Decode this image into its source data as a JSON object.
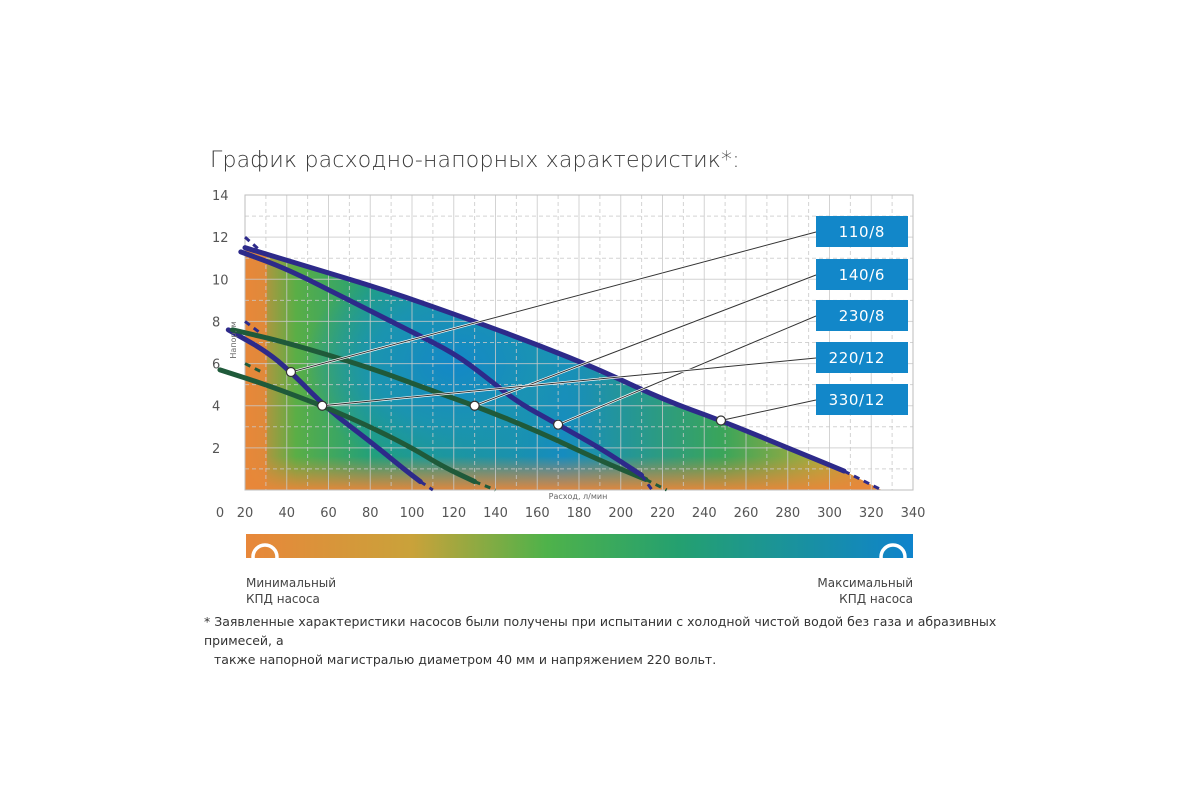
{
  "title": "График расходно-напорных характеристик*:",
  "chart_data": {
    "type": "line",
    "title": "График расходно-напорных характеристик*:",
    "xlabel": "Расход, л/мин",
    "ylabel": "Напор, м",
    "xlim": [
      0,
      340
    ],
    "ylim": [
      0,
      14
    ],
    "xticks": [
      "0",
      "20",
      "40",
      "60",
      "80",
      "100",
      "120",
      "140",
      "160",
      "180",
      "200",
      "220",
      "240",
      "260",
      "280",
      "300",
      "320",
      "340"
    ],
    "yticks": [
      "2",
      "4",
      "6",
      "8",
      "10",
      "12",
      "14"
    ],
    "grid": true,
    "series": [
      {
        "name": "110/8",
        "color": "#2d2a8a",
        "marker": [
          42,
          5.6
        ],
        "x": [
          12,
          30,
          42,
          60,
          80,
          96,
          104
        ],
        "y": [
          7.6,
          6.6,
          5.6,
          3.8,
          2.3,
          1.0,
          0.4
        ],
        "x_dashed": [
          104,
          110
        ],
        "y_dashed": [
          0.4,
          0
        ]
      },
      {
        "name": "140/6",
        "color": "#1f5a3a",
        "marker": [
          130,
          4.0
        ],
        "x": [
          14,
          40,
          80,
          110,
          130,
          160,
          190,
          212
        ],
        "y": [
          7.6,
          7.0,
          5.8,
          4.7,
          4.0,
          2.8,
          1.4,
          0.5
        ],
        "x_dashed": [
          212,
          222
        ],
        "y_dashed": [
          0.5,
          0
        ]
      },
      {
        "name": "230/8",
        "color": "#2d2a8a",
        "marker": [
          170,
          3.1
        ],
        "x": [
          18,
          40,
          70,
          100,
          120,
          135,
          150,
          170,
          190,
          210
        ],
        "y": [
          11.3,
          10.5,
          9.0,
          7.5,
          6.5,
          5.4,
          4.2,
          3.1,
          2.0,
          0.7
        ],
        "x_dashed": [
          210,
          215
        ],
        "y_dashed": [
          0.7,
          0
        ]
      },
      {
        "name": "220/12",
        "color": "#1f5a3a",
        "marker": [
          57,
          4.0
        ],
        "x": [
          8,
          30,
          57,
          80,
          100,
          115,
          130
        ],
        "y": [
          5.7,
          5.0,
          4.0,
          3.0,
          2.0,
          1.1,
          0.4
        ],
        "x_dashed": [
          130,
          140
        ],
        "y_dashed": [
          0.4,
          0
        ]
      },
      {
        "name": "330/12",
        "color": "#2d2a8a",
        "marker": [
          248,
          3.3
        ],
        "x": [
          20,
          50,
          90,
          130,
          160,
          190,
          220,
          248,
          280,
          307
        ],
        "y": [
          11.5,
          10.6,
          9.4,
          8.0,
          6.9,
          5.7,
          4.3,
          3.3,
          2.0,
          0.9
        ],
        "x_dashed": [
          307,
          325
        ],
        "y_dashed": [
          0.9,
          0
        ]
      }
    ]
  },
  "legend_bar": {
    "min_label_line1": "Минимальный",
    "min_label_line2": "КПД насоса",
    "max_label_line1": "Максимальный",
    "max_label_line2": "КПД насоса",
    "colors": [
      "#e8873a",
      "#9fae3c",
      "#3cb04a",
      "#1fa08a",
      "#1287c9"
    ]
  },
  "footnote": {
    "line1": "* Заявленные характеристики насосов были получены при испытании с холодной чистой водой без газа и абразивных примесей, а",
    "line2": "также напорной магистралью диаметром 40 мм и напряжением 220 вольт."
  }
}
